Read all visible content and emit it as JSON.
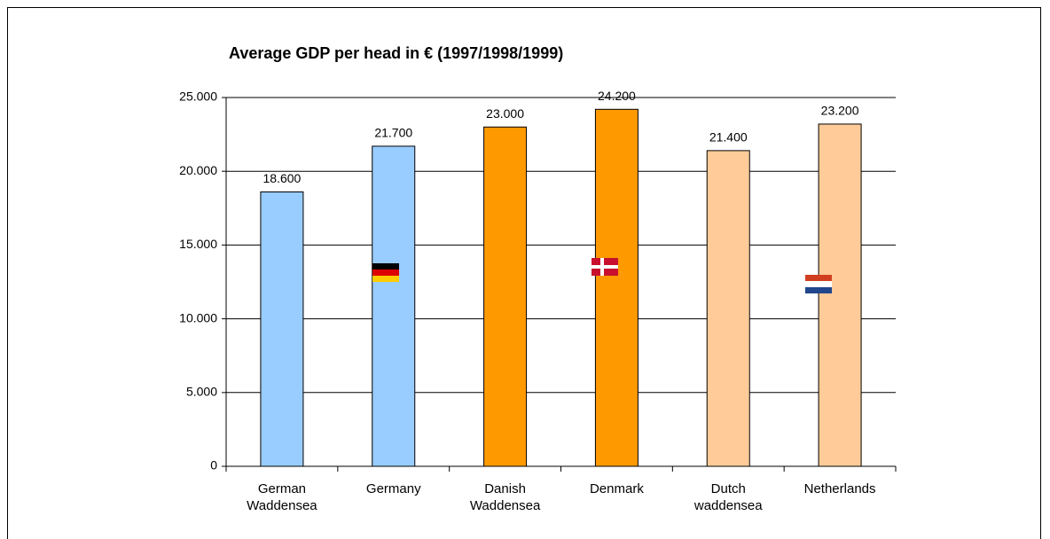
{
  "chart_data": {
    "type": "bar",
    "title": "Average GDP per head in € (1997/1998/1999)",
    "categories": [
      "German Waddensea",
      "Germany",
      "Danish Waddensea",
      "Denmark",
      "Dutch waddensea",
      "Netherlands"
    ],
    "values": [
      18600,
      21700,
      23000,
      24200,
      21400,
      23200
    ],
    "value_labels": [
      "18.600",
      "21.700",
      "23.000",
      "24.200",
      "21.400",
      "23.200"
    ],
    "colors": [
      "#99ccff",
      "#99ccff",
      "#ff9900",
      "#ff9900",
      "#ffcc99",
      "#ffcc99"
    ],
    "ylim": [
      0,
      25000
    ],
    "yticks": [
      0,
      {
        "value": 5000,
        "label": "5.000"
      },
      {
        "value": 10000,
        "label": "10.000"
      },
      {
        "value": 15000,
        "label": "15.000"
      },
      {
        "value": 20000,
        "label": "20.000"
      },
      {
        "value": 25000,
        "label": "25.000"
      }
    ],
    "grid": true
  }
}
